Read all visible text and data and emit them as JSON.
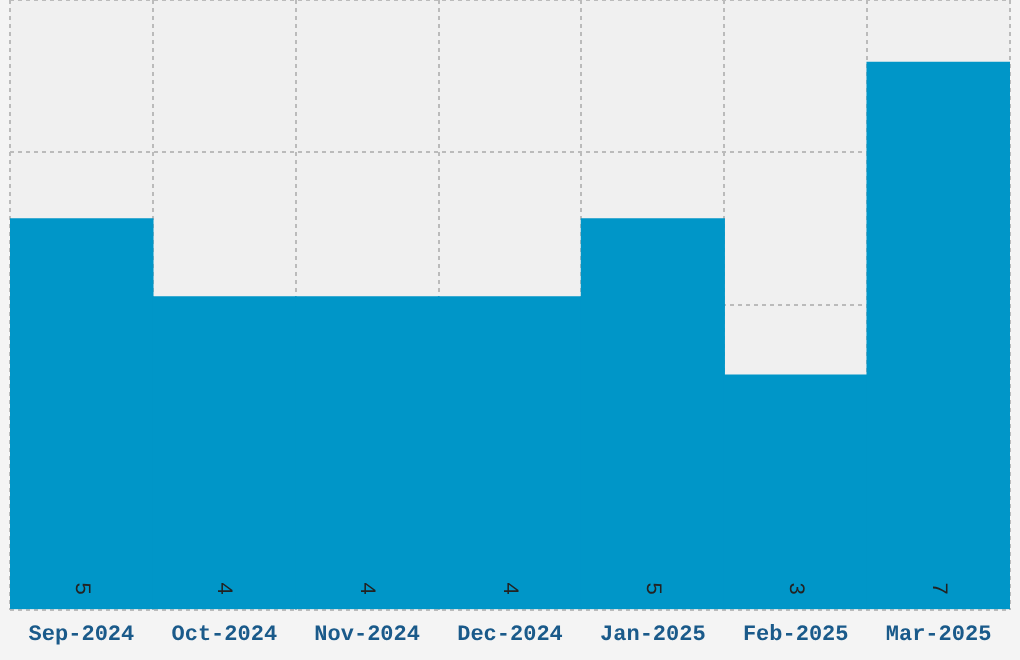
{
  "chart_data": {
    "type": "bar",
    "categories": [
      "Sep-2024",
      "Oct-2024",
      "Nov-2024",
      "Dec-2024",
      "Jan-2025",
      "Feb-2025",
      "Mar-2025"
    ],
    "values": [
      5,
      4,
      4,
      4,
      5,
      3,
      7
    ],
    "color": "#0096c8",
    "data_labels": true,
    "grid": true,
    "tick_labels": "x",
    "legend": false,
    "ylim": [
      0,
      7.8
    ]
  }
}
